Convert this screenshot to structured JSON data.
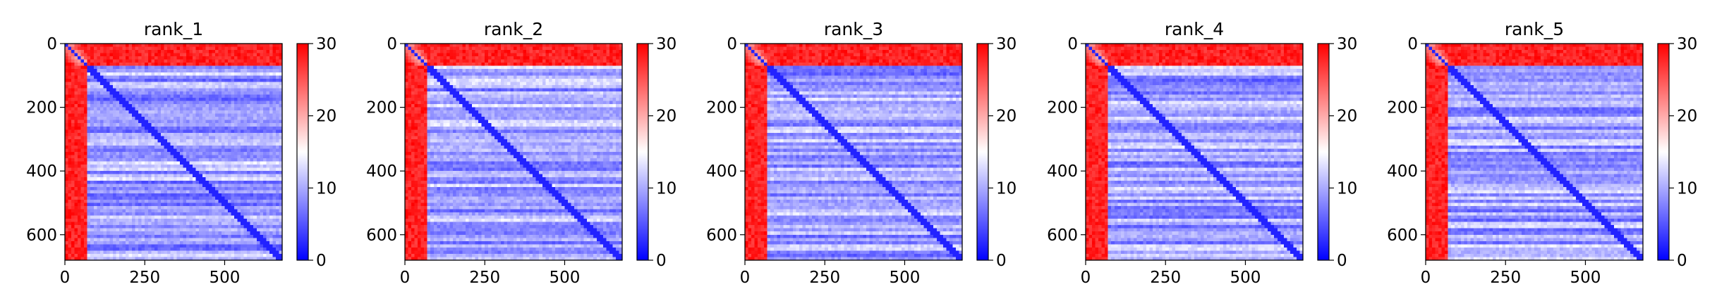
{
  "chart_data": [
    {
      "type": "heatmap",
      "title": "rank_1",
      "xlabel": "",
      "ylabel": "",
      "xlim": [
        0,
        680
      ],
      "ylim": [
        680,
        0
      ],
      "xticks": [
        0,
        250,
        500
      ],
      "xtick_labels": [
        "0",
        "250",
        "500"
      ],
      "yticks": [
        0,
        200,
        400,
        600
      ],
      "ytick_labels": [
        "0",
        "200",
        "400",
        "600"
      ],
      "colorbar": {
        "min": 0,
        "max": 30,
        "ticks": [
          0,
          10,
          20,
          30
        ],
        "tick_labels": [
          "0",
          "10",
          "20",
          "30"
        ],
        "colors": [
          "#0000ff",
          "#ffffff",
          "#ff0000"
        ]
      },
      "description_grid": {
        "n": 680,
        "red_block_end": 70
      }
    },
    {
      "type": "heatmap",
      "title": "rank_2",
      "xlabel": "",
      "ylabel": "",
      "xlim": [
        0,
        680
      ],
      "ylim": [
        680,
        0
      ],
      "xticks": [
        0,
        250,
        500
      ],
      "xtick_labels": [
        "0",
        "250",
        "500"
      ],
      "yticks": [
        0,
        200,
        400,
        600
      ],
      "ytick_labels": [
        "0",
        "200",
        "400",
        "600"
      ],
      "colorbar": {
        "min": 0,
        "max": 30,
        "ticks": [
          0,
          10,
          20,
          30
        ],
        "tick_labels": [
          "0",
          "10",
          "20",
          "30"
        ],
        "colors": [
          "#0000ff",
          "#ffffff",
          "#ff0000"
        ]
      },
      "description_grid": {
        "n": 680,
        "red_block_end": 70
      }
    },
    {
      "type": "heatmap",
      "title": "rank_3",
      "xlabel": "",
      "ylabel": "",
      "xlim": [
        0,
        680
      ],
      "ylim": [
        680,
        0
      ],
      "xticks": [
        0,
        250,
        500
      ],
      "xtick_labels": [
        "0",
        "250",
        "500"
      ],
      "yticks": [
        0,
        200,
        400,
        600
      ],
      "ytick_labels": [
        "0",
        "200",
        "400",
        "600"
      ],
      "colorbar": {
        "min": 0,
        "max": 30,
        "ticks": [
          0,
          10,
          20,
          30
        ],
        "tick_labels": [
          "0",
          "10",
          "20",
          "30"
        ],
        "colors": [
          "#0000ff",
          "#ffffff",
          "#ff0000"
        ]
      },
      "description_grid": {
        "n": 680,
        "red_block_end": 70
      }
    },
    {
      "type": "heatmap",
      "title": "rank_4",
      "xlabel": "",
      "ylabel": "",
      "xlim": [
        0,
        680
      ],
      "ylim": [
        680,
        0
      ],
      "xticks": [
        0,
        250,
        500
      ],
      "xtick_labels": [
        "0",
        "250",
        "500"
      ],
      "yticks": [
        0,
        200,
        400,
        600
      ],
      "ytick_labels": [
        "0",
        "200",
        "400",
        "600"
      ],
      "colorbar": {
        "min": 0,
        "max": 30,
        "ticks": [
          0,
          10,
          20,
          30
        ],
        "tick_labels": [
          "0",
          "10",
          "20",
          "30"
        ],
        "colors": [
          "#0000ff",
          "#ffffff",
          "#ff0000"
        ]
      },
      "description_grid": {
        "n": 680,
        "red_block_end": 70
      }
    },
    {
      "type": "heatmap",
      "title": "rank_5",
      "xlabel": "",
      "ylabel": "",
      "xlim": [
        0,
        680
      ],
      "ylim": [
        680,
        0
      ],
      "xticks": [
        0,
        250,
        500
      ],
      "xtick_labels": [
        "0",
        "250",
        "500"
      ],
      "yticks": [
        0,
        200,
        400,
        600
      ],
      "ytick_labels": [
        "0",
        "200",
        "400",
        "600"
      ],
      "colorbar": {
        "min": 0,
        "max": 30,
        "ticks": [
          0,
          10,
          20,
          30
        ],
        "tick_labels": [
          "0",
          "10",
          "20",
          "30"
        ],
        "colors": [
          "#0000ff",
          "#ffffff",
          "#ff0000"
        ]
      },
      "description_grid": {
        "n": 680,
        "red_block_end": 70
      }
    }
  ]
}
